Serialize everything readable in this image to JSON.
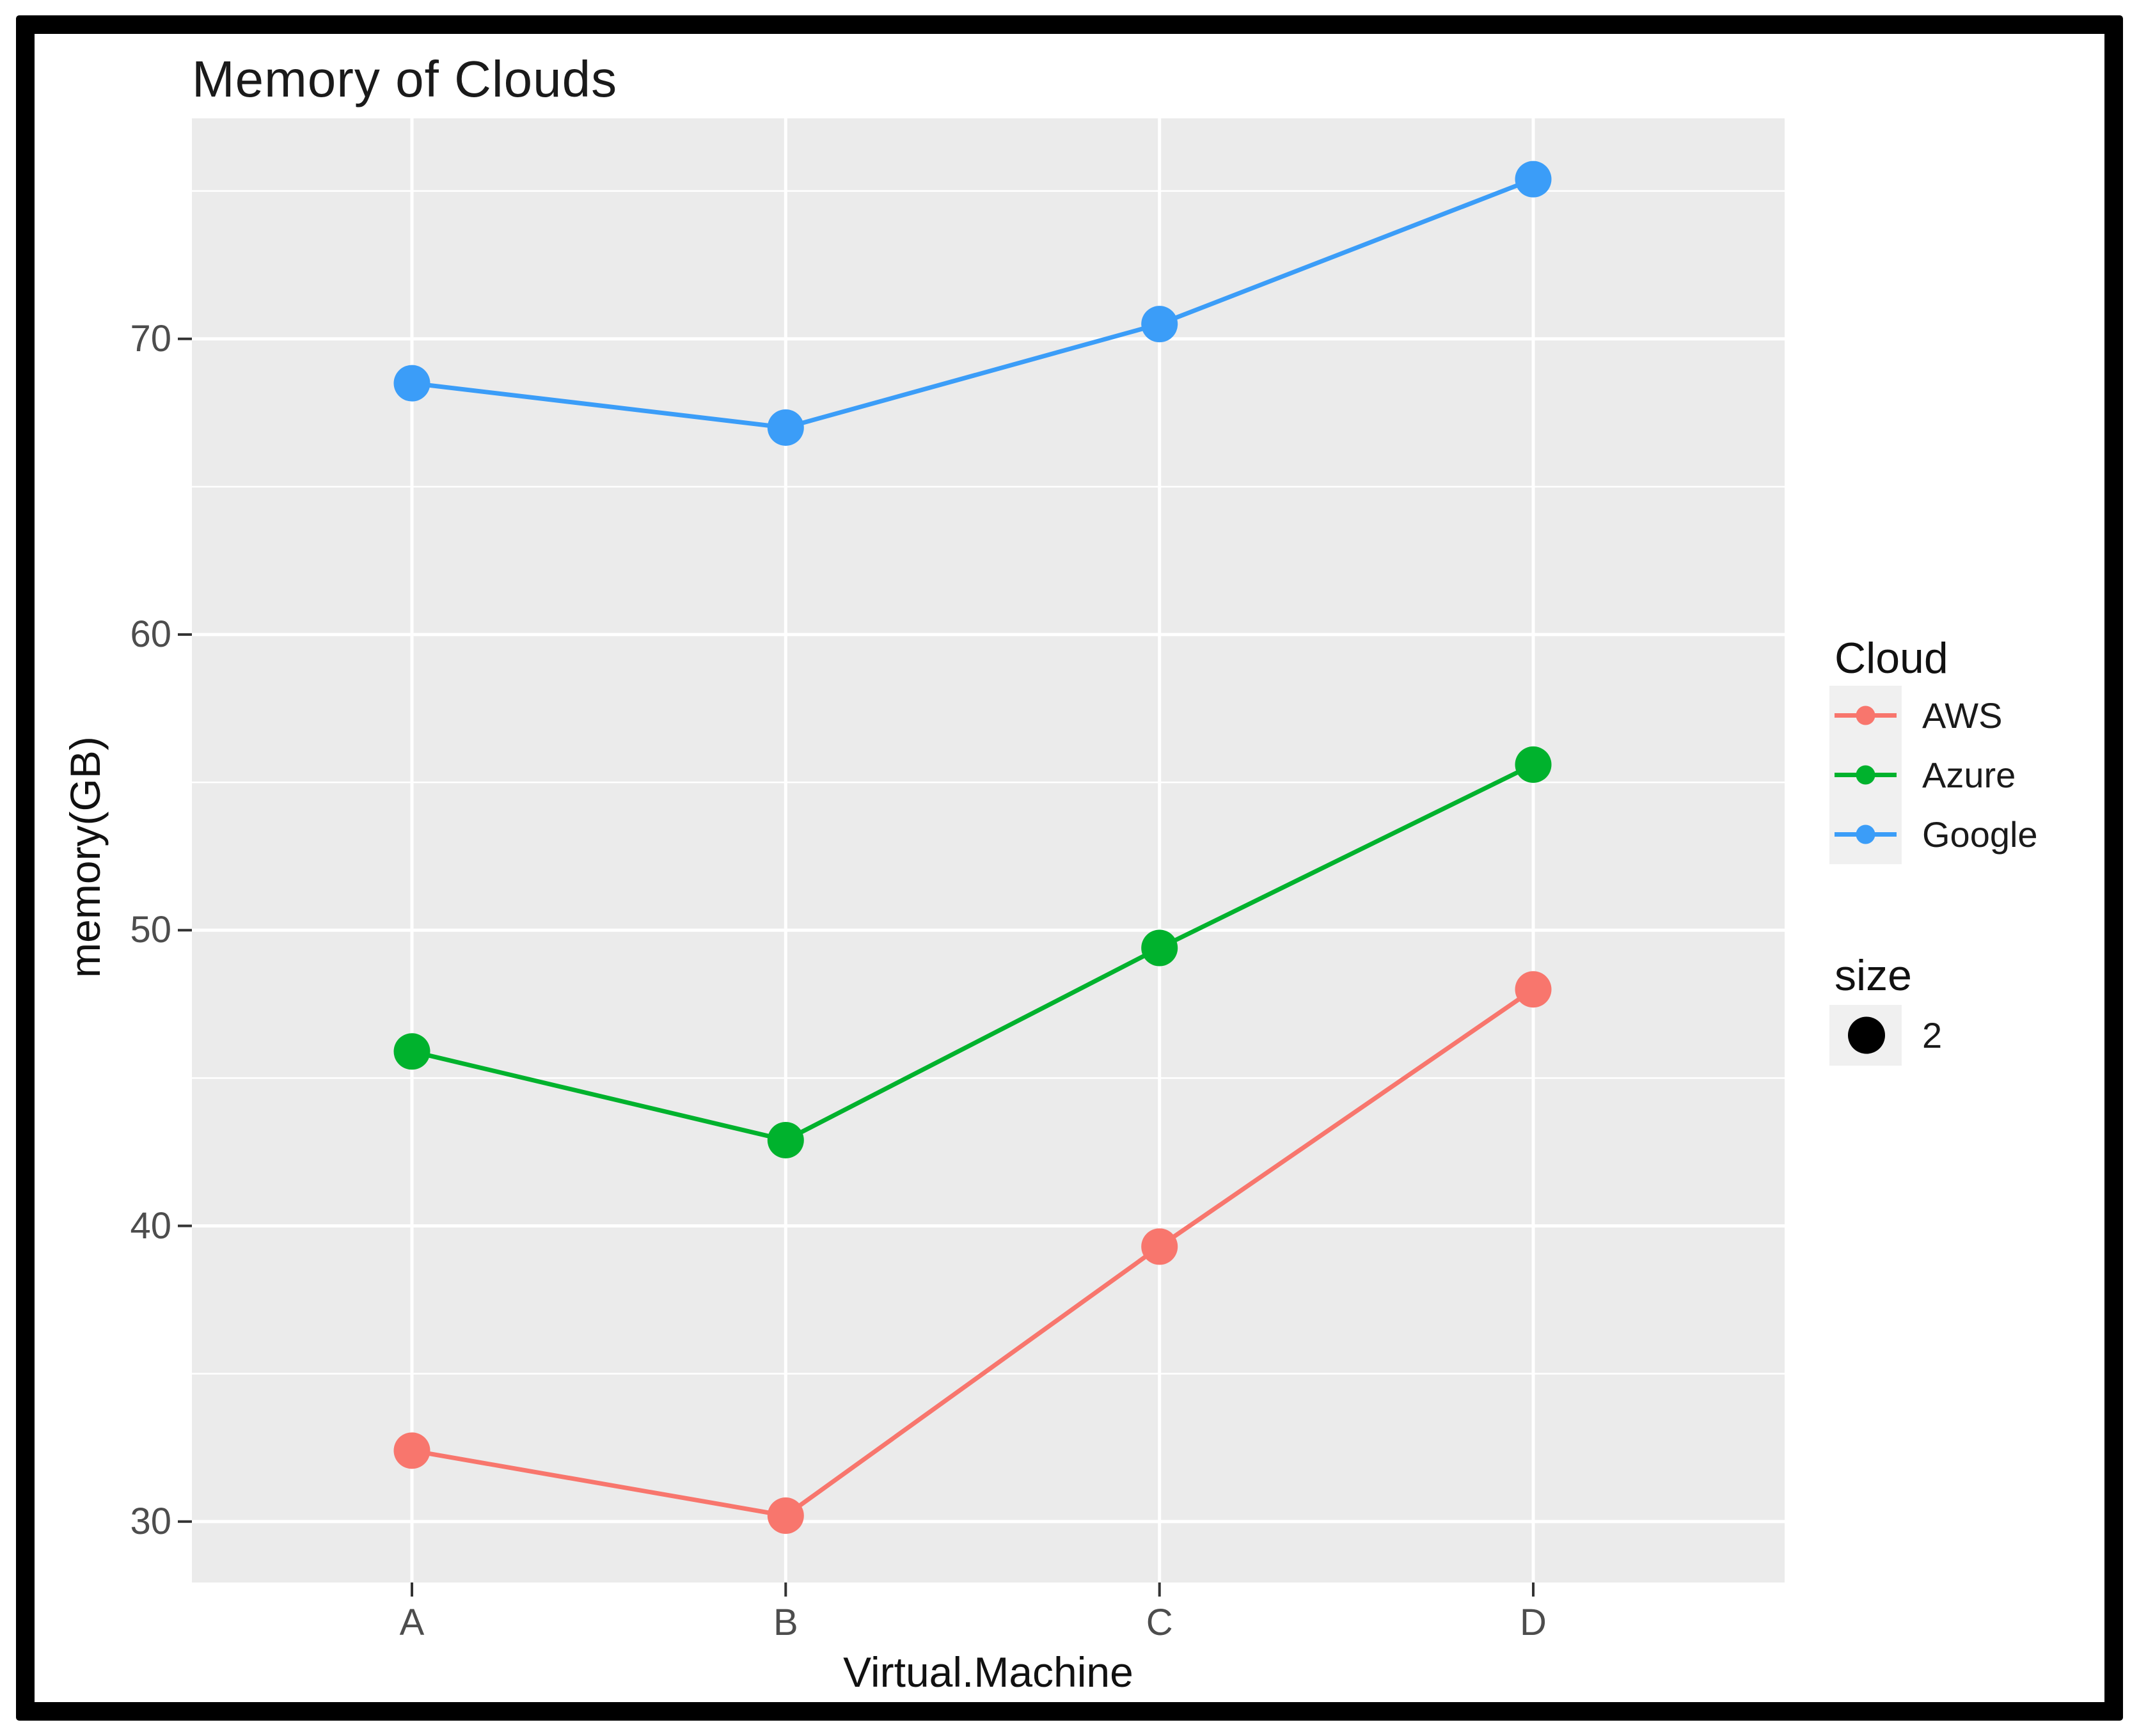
{
  "title": "Memory of Clouds",
  "axes": {
    "x_label": "Virtual.Machine",
    "y_label": "memory(GB)",
    "x_categories": [
      "A",
      "B",
      "C",
      "D"
    ],
    "y_ticks": [
      30,
      40,
      50,
      60,
      70
    ],
    "y_minor_gridlines": [
      35,
      45,
      55,
      65,
      75
    ]
  },
  "legend": {
    "cloud": {
      "title": "Cloud",
      "entries": [
        {
          "label": "AWS",
          "color": "#F8766D"
        },
        {
          "label": "Azure",
          "color": "#00B22D"
        },
        {
          "label": "Google",
          "color": "#3B9DF8"
        }
      ]
    },
    "size": {
      "title": "size",
      "entries": [
        {
          "label": "2",
          "color": "#000000"
        }
      ]
    }
  },
  "colors": {
    "panel_bg": "#EBEBEB",
    "grid": "#FFFFFF",
    "tick_mark": "#333333",
    "tick_text": "#4D4D4D",
    "text": "#111111",
    "frame": "#000000",
    "legend_key_bg": "#F0F0F0"
  },
  "chart_data": {
    "type": "line",
    "title": "Memory of Clouds",
    "xlabel": "Virtual.Machine",
    "ylabel": "memory(GB)",
    "categories": [
      "A",
      "B",
      "C",
      "D"
    ],
    "series": [
      {
        "name": "AWS",
        "color": "#F8766D",
        "values": [
          32.4,
          30.2,
          39.3,
          48.0
        ]
      },
      {
        "name": "Azure",
        "color": "#00B22D",
        "values": [
          45.9,
          42.9,
          49.4,
          55.6
        ]
      },
      {
        "name": "Google",
        "color": "#3B9DF8",
        "values": [
          68.5,
          67.0,
          70.5,
          75.4
        ]
      }
    ],
    "ylim": [
      27.9,
      77.5
    ],
    "grid": true,
    "legend_position": "right",
    "point_size_legend": {
      "title": "size",
      "value": "2"
    }
  }
}
